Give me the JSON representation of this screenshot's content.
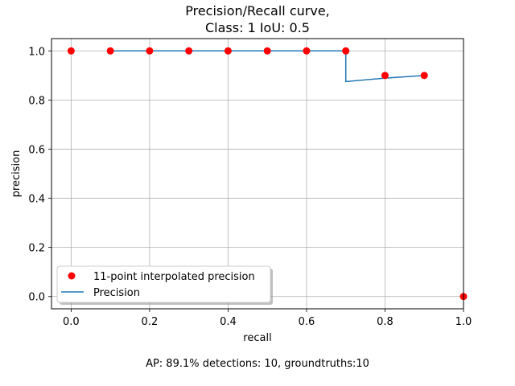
{
  "chart_data": {
    "type": "line",
    "title_line1": "Precision/Recall curve,",
    "title_line2": "Class: 1      IoU: 0.5",
    "xlabel": "recall",
    "ylabel": "precision",
    "xlim": [
      -0.05,
      1.0
    ],
    "ylim": [
      -0.05,
      1.05
    ],
    "xticks": [
      0.0,
      0.2,
      0.4,
      0.6,
      0.8,
      1.0
    ],
    "yticks": [
      0.0,
      0.2,
      0.4,
      0.6,
      0.8,
      1.0
    ],
    "xtick_labels": [
      "0.0",
      "0.2",
      "0.4",
      "0.6",
      "0.8",
      "1.0"
    ],
    "ytick_labels": [
      "0.0",
      "0.2",
      "0.4",
      "0.6",
      "0.8",
      "1.0"
    ],
    "grid": true,
    "legend_position": "lower-left",
    "series": [
      {
        "name": "11-point interpolated precision",
        "kind": "scatter",
        "color": "#ff0000",
        "x": [
          0.0,
          0.1,
          0.2,
          0.3,
          0.4,
          0.5,
          0.6,
          0.7,
          0.8,
          0.9,
          1.0
        ],
        "y": [
          1.0,
          1.0,
          1.0,
          1.0,
          1.0,
          1.0,
          1.0,
          1.0,
          0.9,
          0.9,
          0.0
        ]
      },
      {
        "name": "Precision",
        "kind": "line",
        "color": "#1f77b4",
        "x": [
          0.1,
          0.2,
          0.3,
          0.4,
          0.5,
          0.6,
          0.7,
          0.7,
          0.8,
          0.9
        ],
        "y": [
          1.0,
          1.0,
          1.0,
          1.0,
          1.0,
          1.0,
          1.0,
          0.875,
          0.889,
          0.9
        ]
      }
    ],
    "footer": "AP: 89.1%   detections: 10, groundtruths:10"
  }
}
